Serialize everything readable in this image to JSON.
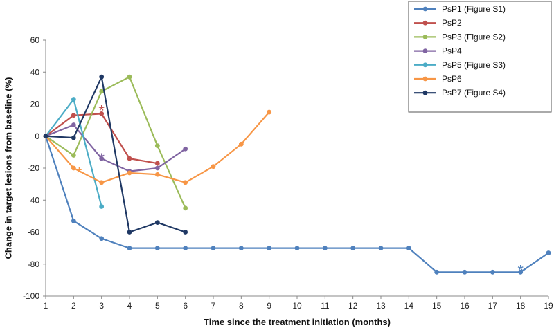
{
  "chart_data": {
    "type": "line",
    "title": "",
    "xlabel": "Time since the treatment initiation (months)",
    "ylabel": "Change in target lesions from baseline (%)",
    "xlim": [
      1,
      19
    ],
    "ylim": [
      -100,
      60
    ],
    "x_ticks": [
      1,
      2,
      3,
      4,
      5,
      6,
      7,
      8,
      9,
      10,
      11,
      12,
      13,
      14,
      15,
      16,
      17,
      18,
      19
    ],
    "y_ticks": [
      -100,
      -80,
      -60,
      -40,
      -20,
      0,
      20,
      40,
      60
    ],
    "grid": false,
    "legend_position": "top-right",
    "series": [
      {
        "name": "PsP1 (Figure S1)",
        "color": "#4F81BD",
        "x": [
          1,
          2,
          3,
          4,
          5,
          6,
          7,
          8,
          9,
          10,
          11,
          12,
          13,
          14,
          15,
          16,
          17,
          18,
          19
        ],
        "y": [
          0,
          -53,
          -64,
          -70,
          -70,
          -70,
          -70,
          -70,
          -70,
          -70,
          -70,
          -70,
          -70,
          -70,
          -85,
          -85,
          -85,
          -85,
          -73
        ]
      },
      {
        "name": "PsP2",
        "color": "#C0504D",
        "x": [
          1,
          2,
          3,
          4,
          5
        ],
        "y": [
          0,
          13,
          14,
          -14,
          -17
        ]
      },
      {
        "name": "PsP3 (Figure S2)",
        "color": "#9BBB59",
        "x": [
          1,
          2,
          3,
          4,
          5,
          6
        ],
        "y": [
          0,
          -12,
          28,
          37,
          -6,
          -45
        ]
      },
      {
        "name": "PsP4",
        "color": "#8064A2",
        "x": [
          1,
          2,
          3,
          4,
          5,
          6
        ],
        "y": [
          0,
          7,
          -14,
          -22,
          -20,
          -8
        ]
      },
      {
        "name": "PsP5 (Figure S3)",
        "color": "#4BACC6",
        "x": [
          1,
          2,
          3
        ],
        "y": [
          0,
          23,
          -44
        ]
      },
      {
        "name": "PsP6",
        "color": "#F79646",
        "x": [
          1,
          2,
          3,
          4,
          5,
          6,
          7,
          8,
          9
        ],
        "y": [
          0,
          -20,
          -29,
          -23,
          -24,
          -29,
          -19,
          -5,
          15
        ]
      },
      {
        "name": "PsP7 (Figure S4)",
        "color": "#1F3864",
        "x": [
          1,
          2,
          3,
          4,
          5,
          6
        ],
        "y": [
          0,
          -1,
          37,
          -60,
          -54,
          -60
        ]
      }
    ],
    "annotations": [
      {
        "text": "*",
        "x": 3.0,
        "y": 17,
        "series": "PsP2"
      },
      {
        "text": "*",
        "x": 3.0,
        "y": -13,
        "series": "PsP4"
      },
      {
        "text": "*",
        "x": 2.2,
        "y": -22,
        "series": "PsP6"
      },
      {
        "text": "*",
        "x": 18.0,
        "y": -83,
        "series": "PsP1 (Figure S1)"
      }
    ]
  }
}
